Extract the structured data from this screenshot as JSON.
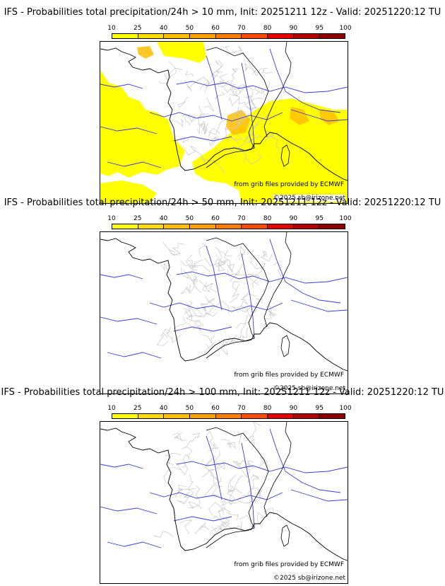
{
  "colorbar": {
    "labels": [
      "10",
      "25",
      "40",
      "50",
      "60",
      "70",
      "80",
      "90",
      "95",
      "100"
    ],
    "colors": [
      "#ffff00",
      "#ffdc00",
      "#ffbe00",
      "#ffa000",
      "#ff7d00",
      "#ff4b00",
      "#e60000",
      "#b40000",
      "#8c0000",
      "#5a0000"
    ]
  },
  "panels": [
    {
      "title": "IFS - Probabilities total precipitation/24h > 10 mm, Init: 20251211 12z - Valid: 20251220:12 TU",
      "credit_source": "from grib files provided by ECMWF",
      "credit_copyright": "©2025 sb@irizone.net",
      "has_precip": true
    },
    {
      "title": "IFS - Probabilities total precipitation/24h > 50 mm, Init: 20251211 12z - Valid: 20251220:12 TU",
      "credit_source": "from grib files provided by ECMWF",
      "credit_copyright": "©2025 sb@irizone.net",
      "has_precip": false
    },
    {
      "title": "IFS - Probabilities total precipitation/24h > 100 mm, Init: 20251211 12z - Valid: 20251220:12 TU",
      "credit_source": "from grib files provided by ECMWF",
      "credit_copyright": "©2025 sb@irizone.net",
      "has_precip": false
    }
  ]
}
